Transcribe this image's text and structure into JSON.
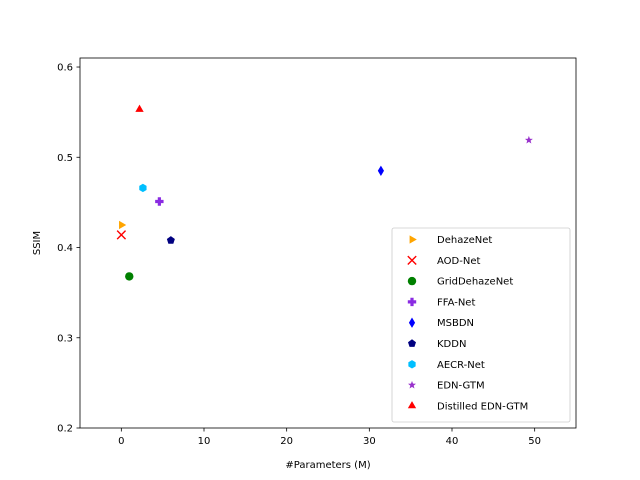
{
  "chart_data": {
    "type": "scatter",
    "title": "",
    "xlabel": "#Parameters (M)",
    "ylabel": "SSIM",
    "xlim": [
      -5,
      55
    ],
    "ylim": [
      0.2,
      0.61
    ],
    "xticks": [
      0,
      10,
      20,
      30,
      40,
      50
    ],
    "yticks": [
      0.2,
      0.3,
      0.4,
      0.5,
      0.6
    ],
    "xtick_labels": [
      "0",
      "10",
      "20",
      "30",
      "40",
      "50"
    ],
    "ytick_labels": [
      "0.2",
      "0.3",
      "0.4",
      "0.5",
      "0.6"
    ],
    "grid": false,
    "legend_position": "lower-right",
    "series": [
      {
        "name": "DehazeNet",
        "marker": "triangle-right",
        "color": "#FFA500",
        "x": [
          0.01
        ],
        "y": [
          0.425
        ]
      },
      {
        "name": "AOD-Net",
        "marker": "x",
        "color": "#FF0000",
        "x": [
          0.002
        ],
        "y": [
          0.414
        ]
      },
      {
        "name": "GridDehazeNet",
        "marker": "circle",
        "color": "#008000",
        "x": [
          0.96
        ],
        "y": [
          0.368
        ]
      },
      {
        "name": "FFA-Net",
        "marker": "plus",
        "color": "#8A2BE2",
        "x": [
          4.6
        ],
        "y": [
          0.451
        ]
      },
      {
        "name": "MSBDN",
        "marker": "thin-diamond",
        "color": "#0000FF",
        "x": [
          31.4
        ],
        "y": [
          0.485
        ]
      },
      {
        "name": "KDDN",
        "marker": "pentagon",
        "color": "#000080",
        "x": [
          5.99
        ],
        "y": [
          0.408
        ]
      },
      {
        "name": "AECR-Net",
        "marker": "hexagon",
        "color": "#00BFFF",
        "x": [
          2.61
        ],
        "y": [
          0.466
        ]
      },
      {
        "name": "EDN-GTM",
        "marker": "star",
        "color": "#9932CC",
        "x": [
          49.3
        ],
        "y": [
          0.519
        ]
      },
      {
        "name": "Distilled EDN-GTM",
        "marker": "triangle-up",
        "color": "#FF0000",
        "x": [
          2.2
        ],
        "y": [
          0.553
        ]
      }
    ]
  }
}
